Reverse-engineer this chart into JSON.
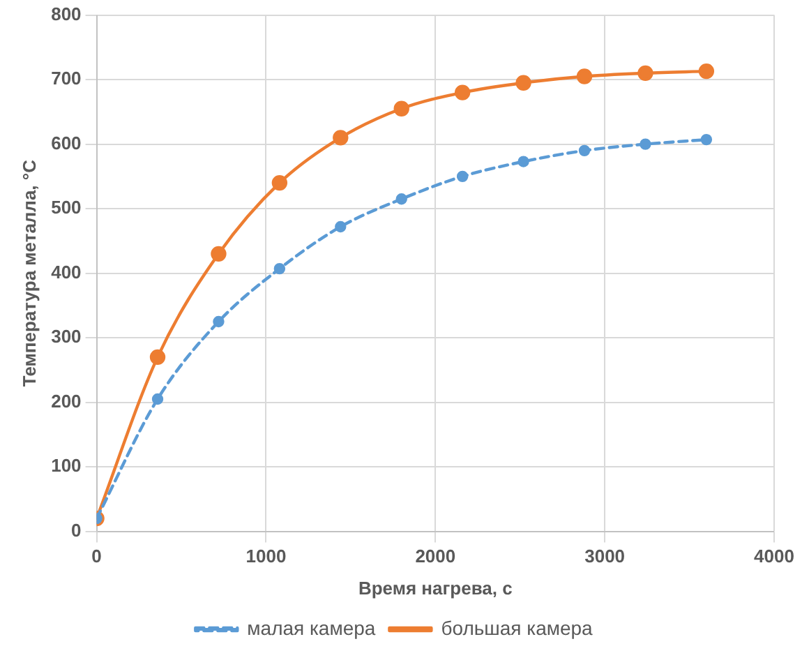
{
  "chart_data": {
    "type": "line",
    "xlabel": "Время нагрева, с",
    "ylabel": "Температура металла, °C",
    "x": [
      0,
      360,
      720,
      1080,
      1440,
      1800,
      2160,
      2520,
      2880,
      3240,
      3600
    ],
    "series": [
      {
        "name": "малая камера",
        "color": "#5b9bd5",
        "line_style": "dashed",
        "values": [
          20,
          205,
          325,
          407,
          472,
          515,
          550,
          573,
          590,
          600,
          607
        ]
      },
      {
        "name": "большая камера",
        "color": "#ed7d31",
        "line_style": "solid",
        "values": [
          20,
          270,
          430,
          540,
          610,
          655,
          680,
          695,
          705,
          710,
          713
        ]
      }
    ],
    "xlim": [
      0,
      4000
    ],
    "xticks": [
      0,
      1000,
      2000,
      3000,
      4000
    ],
    "ylim": [
      0,
      800
    ],
    "yticks": [
      0,
      100,
      200,
      300,
      400,
      500,
      600,
      700,
      800
    ],
    "grid": true,
    "legend": "bottom",
    "marker": "circle"
  }
}
